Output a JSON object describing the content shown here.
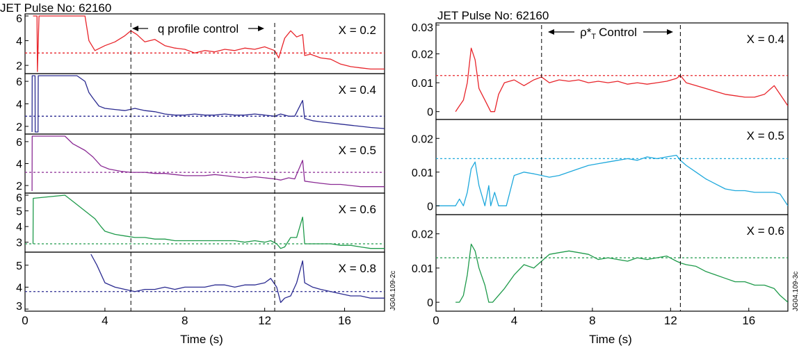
{
  "chart_data": [
    {
      "type": "line",
      "title": "JET Pulse No: 62160",
      "annotation": "q profile control",
      "xlabel": "Time (s)",
      "xlim": [
        0,
        18
      ],
      "xticks": [
        "0",
        "4",
        "8",
        "12",
        "16"
      ],
      "side_label": "JG04.109-2c",
      "vlines": [
        5.3,
        12.5
      ],
      "panels": [
        {
          "label": "X = 0.2",
          "color": "#e8242a",
          "ylim": [
            1.5,
            6
          ],
          "yticks": [
            2,
            4,
            6
          ],
          "ref": 3.0,
          "x": [
            0.4,
            0.5,
            0.6,
            0.62,
            0.7,
            0.8,
            3.0,
            3.2,
            3.5,
            4.0,
            4.5,
            5.0,
            5.3,
            5.6,
            6.0,
            6.5,
            7.0,
            7.5,
            8.0,
            8.5,
            9.0,
            9.5,
            10.0,
            10.5,
            11.0,
            11.5,
            12.0,
            12.5,
            12.7,
            13.0,
            13.3,
            13.6,
            13.9,
            14.0,
            14.3,
            14.8,
            15.3,
            15.8,
            16.3,
            16.8,
            17.3,
            18.0
          ],
          "y": [
            6.0,
            6.0,
            6.0,
            1.5,
            6.0,
            6.0,
            6.0,
            4.0,
            3.2,
            3.6,
            3.9,
            4.4,
            4.8,
            4.5,
            3.9,
            4.1,
            3.6,
            3.4,
            3.3,
            3.0,
            3.2,
            3.1,
            3.3,
            3.2,
            3.4,
            3.3,
            3.5,
            3.2,
            2.6,
            4.2,
            4.8,
            4.3,
            4.5,
            2.8,
            2.9,
            2.6,
            2.5,
            2.1,
            1.9,
            1.8,
            1.7,
            1.7
          ]
        },
        {
          "label": "X = 0.4",
          "color": "#2a2a90",
          "ylim": [
            1.5,
            6.5
          ],
          "yticks": [
            2,
            4,
            6
          ],
          "ref": 2.9,
          "x": [
            0.35,
            0.36,
            0.5,
            0.51,
            0.65,
            0.66,
            2.6,
            3.0,
            3.2,
            3.4,
            3.7,
            4.0,
            4.5,
            5.0,
            5.5,
            6.0,
            6.5,
            7.0,
            7.5,
            8.0,
            8.5,
            9.0,
            9.5,
            10.0,
            10.5,
            11.0,
            11.5,
            12.0,
            12.5,
            12.8,
            13.2,
            13.5,
            13.9,
            14.0,
            14.4,
            14.8,
            15.3,
            15.8,
            16.3,
            16.8,
            17.3,
            18.0
          ],
          "y": [
            1.5,
            6.5,
            6.5,
            1.5,
            1.5,
            6.5,
            6.5,
            6.0,
            5.0,
            4.5,
            3.8,
            3.6,
            3.5,
            3.4,
            3.6,
            3.4,
            3.3,
            3.1,
            3.0,
            3.0,
            3.1,
            3.0,
            3.0,
            3.1,
            3.0,
            3.0,
            3.1,
            3.0,
            2.9,
            3.1,
            2.9,
            2.9,
            4.3,
            2.7,
            2.5,
            2.4,
            2.3,
            2.2,
            2.1,
            2.0,
            1.9,
            1.8
          ]
        },
        {
          "label": "X = 0.5",
          "color": "#8a2a94",
          "ylim": [
            1.5,
            6.5
          ],
          "yticks": [
            2,
            4,
            6
          ],
          "ref": 3.2,
          "x": [
            0.35,
            0.36,
            2.0,
            2.4,
            3.0,
            3.4,
            3.8,
            4.2,
            4.8,
            5.3,
            6.0,
            6.5,
            7.0,
            7.5,
            8.0,
            8.5,
            9.0,
            9.5,
            10.0,
            10.5,
            11.0,
            11.5,
            12.0,
            12.5,
            12.8,
            13.2,
            13.5,
            13.9,
            14.0,
            14.4,
            14.8,
            15.3,
            15.8,
            16.3,
            16.8,
            17.3,
            18.0
          ],
          "y": [
            1.5,
            6.5,
            6.5,
            5.8,
            5.2,
            4.6,
            3.8,
            3.5,
            3.3,
            3.2,
            3.2,
            3.1,
            3.1,
            3.0,
            2.9,
            2.9,
            2.9,
            3.0,
            2.9,
            2.8,
            2.7,
            2.8,
            2.7,
            2.6,
            2.5,
            2.7,
            2.6,
            4.3,
            2.4,
            2.3,
            2.2,
            2.1,
            2.1,
            2.0,
            1.9,
            1.9,
            1.9
          ]
        },
        {
          "label": "X = 0.6",
          "color": "#1e9a4a",
          "ylim": [
            2.5,
            6
          ],
          "yticks": [
            3,
            4,
            5,
            6
          ],
          "ref": 2.9,
          "x": [
            0.4,
            0.41,
            2.0,
            2.5,
            3.0,
            3.5,
            3.8,
            4.0,
            4.5,
            5.0,
            5.5,
            6.0,
            6.5,
            7.0,
            7.5,
            8.0,
            8.5,
            9.0,
            9.5,
            10.0,
            10.5,
            11.0,
            11.5,
            12.0,
            12.3,
            12.6,
            12.8,
            13.0,
            13.3,
            13.6,
            13.9,
            14.0,
            14.4,
            14.8,
            15.3,
            15.8,
            16.3,
            16.8,
            17.3,
            18.0
          ],
          "y": [
            2.9,
            5.8,
            6.0,
            5.5,
            5.0,
            4.5,
            4.0,
            3.7,
            3.5,
            3.4,
            3.3,
            3.3,
            3.2,
            3.2,
            3.1,
            3.1,
            3.1,
            3.1,
            3.1,
            3.1,
            3.1,
            3.0,
            3.1,
            3.0,
            3.1,
            2.9,
            2.6,
            2.7,
            3.3,
            3.3,
            4.6,
            2.9,
            2.9,
            2.9,
            2.9,
            2.8,
            2.8,
            2.7,
            2.6,
            2.6
          ]
        },
        {
          "label": "X = 0.8",
          "color": "#2a2a90",
          "ylim": [
            3,
            5.5
          ],
          "yticks": [
            3,
            4,
            5
          ],
          "ref": 3.8,
          "x": [
            3.3,
            3.6,
            4.0,
            4.5,
            5.0,
            5.5,
            6.0,
            6.5,
            7.0,
            7.5,
            8.0,
            8.5,
            9.0,
            9.5,
            10.0,
            10.5,
            11.0,
            11.5,
            12.0,
            12.3,
            12.6,
            12.8,
            13.0,
            13.3,
            13.6,
            13.9,
            14.0,
            14.4,
            14.8,
            15.3,
            15.8,
            16.3,
            16.8,
            17.3,
            18.0
          ],
          "y": [
            5.5,
            5.0,
            4.2,
            4.0,
            3.9,
            3.8,
            3.9,
            3.9,
            4.0,
            3.9,
            4.0,
            4.0,
            4.0,
            4.1,
            4.1,
            4.0,
            4.1,
            4.1,
            4.2,
            4.4,
            4.0,
            3.3,
            3.5,
            3.6,
            4.2,
            5.2,
            4.2,
            4.0,
            3.9,
            3.8,
            3.7,
            3.6,
            3.6,
            3.5,
            3.5
          ]
        }
      ]
    },
    {
      "type": "line",
      "title": "JET Pulse No: 62160",
      "annotation": "ρ*",
      "annotation_sub": "T",
      "annotation_tail": "Control",
      "xlabel": "Time (s)",
      "xlim": [
        0,
        18
      ],
      "xticks": [
        "0",
        "4",
        "8",
        "12",
        "16"
      ],
      "side_label": "JG04.109-3c",
      "vlines": [
        5.4,
        12.5
      ],
      "panels": [
        {
          "label": "X = 0.4",
          "color": "#e8242a",
          "ylim": [
            -0.002,
            0.03
          ],
          "yticks": [
            0,
            0.01,
            0.02,
            0.03
          ],
          "ytick_labels": [
            "0",
            "0.01",
            "0.02",
            "0.03"
          ],
          "ref": 0.0125,
          "x": [
            1.0,
            1.2,
            1.4,
            1.6,
            1.8,
            2.0,
            2.2,
            2.5,
            2.8,
            3.0,
            3.2,
            3.5,
            4.0,
            4.5,
            5.0,
            5.4,
            5.8,
            6.3,
            6.8,
            7.3,
            7.8,
            8.3,
            8.8,
            9.3,
            9.8,
            10.3,
            10.8,
            11.3,
            11.8,
            12.3,
            12.5,
            12.8,
            13.3,
            13.8,
            14.3,
            14.8,
            15.3,
            15.8,
            16.3,
            16.8,
            17.3,
            17.6,
            18.0
          ],
          "y": [
            0.0,
            0.002,
            0.004,
            0.01,
            0.022,
            0.018,
            0.008,
            0.004,
            0.0,
            0.0,
            0.006,
            0.01,
            0.011,
            0.009,
            0.011,
            0.012,
            0.01,
            0.011,
            0.0105,
            0.011,
            0.01,
            0.0105,
            0.01,
            0.0105,
            0.0095,
            0.01,
            0.0095,
            0.01,
            0.0105,
            0.0115,
            0.0125,
            0.01,
            0.009,
            0.008,
            0.007,
            0.006,
            0.0055,
            0.005,
            0.005,
            0.006,
            0.009,
            0.006,
            0.002
          ]
        },
        {
          "label": "X = 0.5",
          "color": "#1ea8dc",
          "ylim": [
            -0.002,
            0.025
          ],
          "yticks": [
            0,
            0.01,
            0.02
          ],
          "ytick_labels": [
            "0",
            "0.01",
            "0.02"
          ],
          "ref": 0.014,
          "x": [
            0.0,
            1.0,
            1.2,
            1.4,
            1.6,
            1.8,
            2.0,
            2.2,
            2.5,
            2.7,
            2.8,
            3.0,
            3.2,
            3.6,
            4.0,
            4.5,
            5.0,
            5.4,
            5.8,
            6.3,
            6.8,
            7.3,
            7.8,
            8.3,
            8.8,
            9.3,
            9.8,
            10.3,
            10.8,
            11.3,
            11.8,
            12.3,
            12.5,
            12.8,
            13.3,
            13.8,
            14.3,
            14.8,
            15.3,
            15.8,
            16.3,
            16.8,
            17.3,
            17.6,
            18.0
          ],
          "y": [
            0.0,
            0.0,
            0.002,
            0.0,
            0.004,
            0.011,
            0.013,
            0.006,
            0.0,
            0.006,
            0.0,
            0.004,
            0.0,
            0.0,
            0.009,
            0.01,
            0.0095,
            0.009,
            0.0085,
            0.009,
            0.01,
            0.011,
            0.012,
            0.0125,
            0.013,
            0.0135,
            0.014,
            0.0135,
            0.0145,
            0.014,
            0.0145,
            0.015,
            0.0135,
            0.012,
            0.01,
            0.008,
            0.0065,
            0.005,
            0.0045,
            0.0045,
            0.004,
            0.004,
            0.004,
            0.0035,
            0.0
          ]
        },
        {
          "label": "X = 0.6",
          "color": "#1e9a4a",
          "ylim": [
            -0.002,
            0.025
          ],
          "yticks": [
            0,
            0.01,
            0.02
          ],
          "ytick_labels": [
            "0",
            "0.01",
            "0.02"
          ],
          "ref": 0.013,
          "x": [
            1.0,
            1.2,
            1.4,
            1.6,
            1.8,
            2.0,
            2.2,
            2.5,
            2.7,
            2.9,
            3.5,
            4.0,
            4.5,
            5.0,
            5.4,
            5.8,
            6.3,
            6.8,
            7.3,
            7.8,
            8.3,
            8.8,
            9.3,
            9.8,
            10.3,
            10.8,
            11.3,
            11.8,
            12.3,
            12.5,
            12.8,
            13.3,
            13.8,
            14.3,
            14.8,
            15.3,
            15.8,
            16.3,
            16.8,
            17.3,
            17.6,
            18.0
          ],
          "y": [
            0.0,
            0.0,
            0.002,
            0.008,
            0.017,
            0.015,
            0.01,
            0.005,
            0.0,
            0.0,
            0.004,
            0.008,
            0.011,
            0.01,
            0.012,
            0.014,
            0.0145,
            0.015,
            0.0145,
            0.014,
            0.0125,
            0.013,
            0.0125,
            0.012,
            0.013,
            0.0125,
            0.013,
            0.0135,
            0.012,
            0.0115,
            0.011,
            0.0105,
            0.009,
            0.008,
            0.007,
            0.006,
            0.006,
            0.005,
            0.005,
            0.004,
            0.002,
            0.0
          ]
        }
      ]
    }
  ]
}
